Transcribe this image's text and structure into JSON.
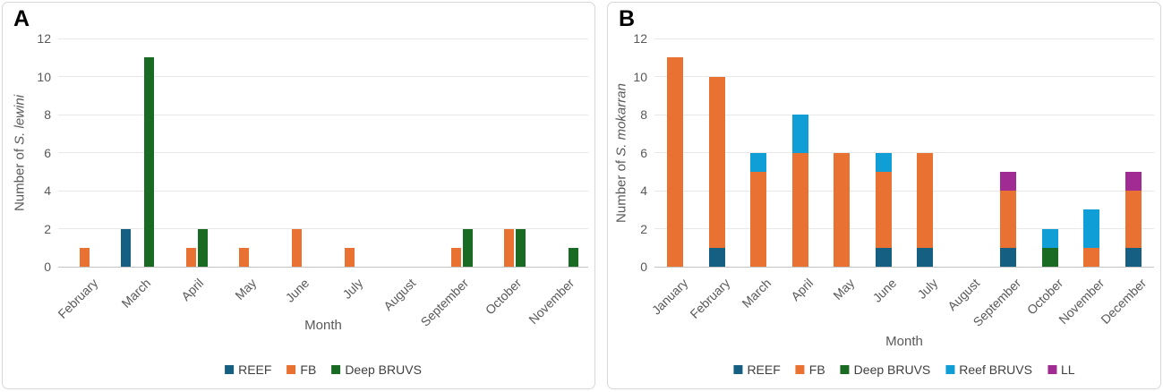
{
  "figure": {
    "panels": [
      {
        "label": "A"
      },
      {
        "label": "B"
      }
    ]
  },
  "chart_data": [
    {
      "type": "bar",
      "mode": "grouped",
      "panel_label": "A",
      "xlabel": "Month",
      "ylabel_prefix": "Number of ",
      "ylabel_species": "S. lewini",
      "ylim": [
        0,
        12
      ],
      "ytick_step": 2,
      "grid": true,
      "legend_position": "bottom",
      "categories": [
        "February",
        "March",
        "April",
        "May",
        "June",
        "July",
        "August",
        "September",
        "October",
        "November"
      ],
      "series": [
        {
          "name": "REEF",
          "color": "#156082",
          "values": [
            0,
            2,
            0,
            0,
            0,
            0,
            0,
            0,
            0,
            0
          ]
        },
        {
          "name": "FB",
          "color": "#E97132",
          "values": [
            1,
            0,
            1,
            1,
            2,
            1,
            0,
            1,
            2,
            0
          ]
        },
        {
          "name": "Deep BRUVS",
          "color": "#196B24",
          "values": [
            0,
            11,
            2,
            0,
            0,
            0,
            0,
            2,
            2,
            1
          ]
        }
      ]
    },
    {
      "type": "bar",
      "mode": "stacked",
      "panel_label": "B",
      "xlabel": "Month",
      "ylabel_prefix": "Number of ",
      "ylabel_species": "S. mokarran",
      "ylim": [
        0,
        12
      ],
      "ytick_step": 2,
      "grid": true,
      "legend_position": "bottom",
      "categories": [
        "January",
        "February",
        "March",
        "April",
        "May",
        "June",
        "July",
        "August",
        "September",
        "October",
        "November",
        "December"
      ],
      "series": [
        {
          "name": "REEF",
          "color": "#156082",
          "values": [
            0,
            1,
            0,
            0,
            0,
            1,
            1,
            0,
            1,
            0,
            0,
            1
          ]
        },
        {
          "name": "FB",
          "color": "#E97132",
          "values": [
            11,
            9,
            5,
            6,
            6,
            4,
            5,
            0,
            3,
            0,
            1,
            3
          ]
        },
        {
          "name": "Deep BRUVS",
          "color": "#196B24",
          "values": [
            0,
            0,
            0,
            0,
            0,
            0,
            0,
            0,
            0,
            1,
            0,
            0
          ]
        },
        {
          "name": "Reef BRUVS",
          "color": "#0F9ED5",
          "values": [
            0,
            0,
            1,
            2,
            0,
            1,
            0,
            0,
            0,
            1,
            2,
            0
          ]
        },
        {
          "name": "LL",
          "color": "#A02B93",
          "values": [
            0,
            0,
            0,
            0,
            0,
            0,
            0,
            0,
            1,
            0,
            0,
            1
          ]
        }
      ]
    }
  ]
}
